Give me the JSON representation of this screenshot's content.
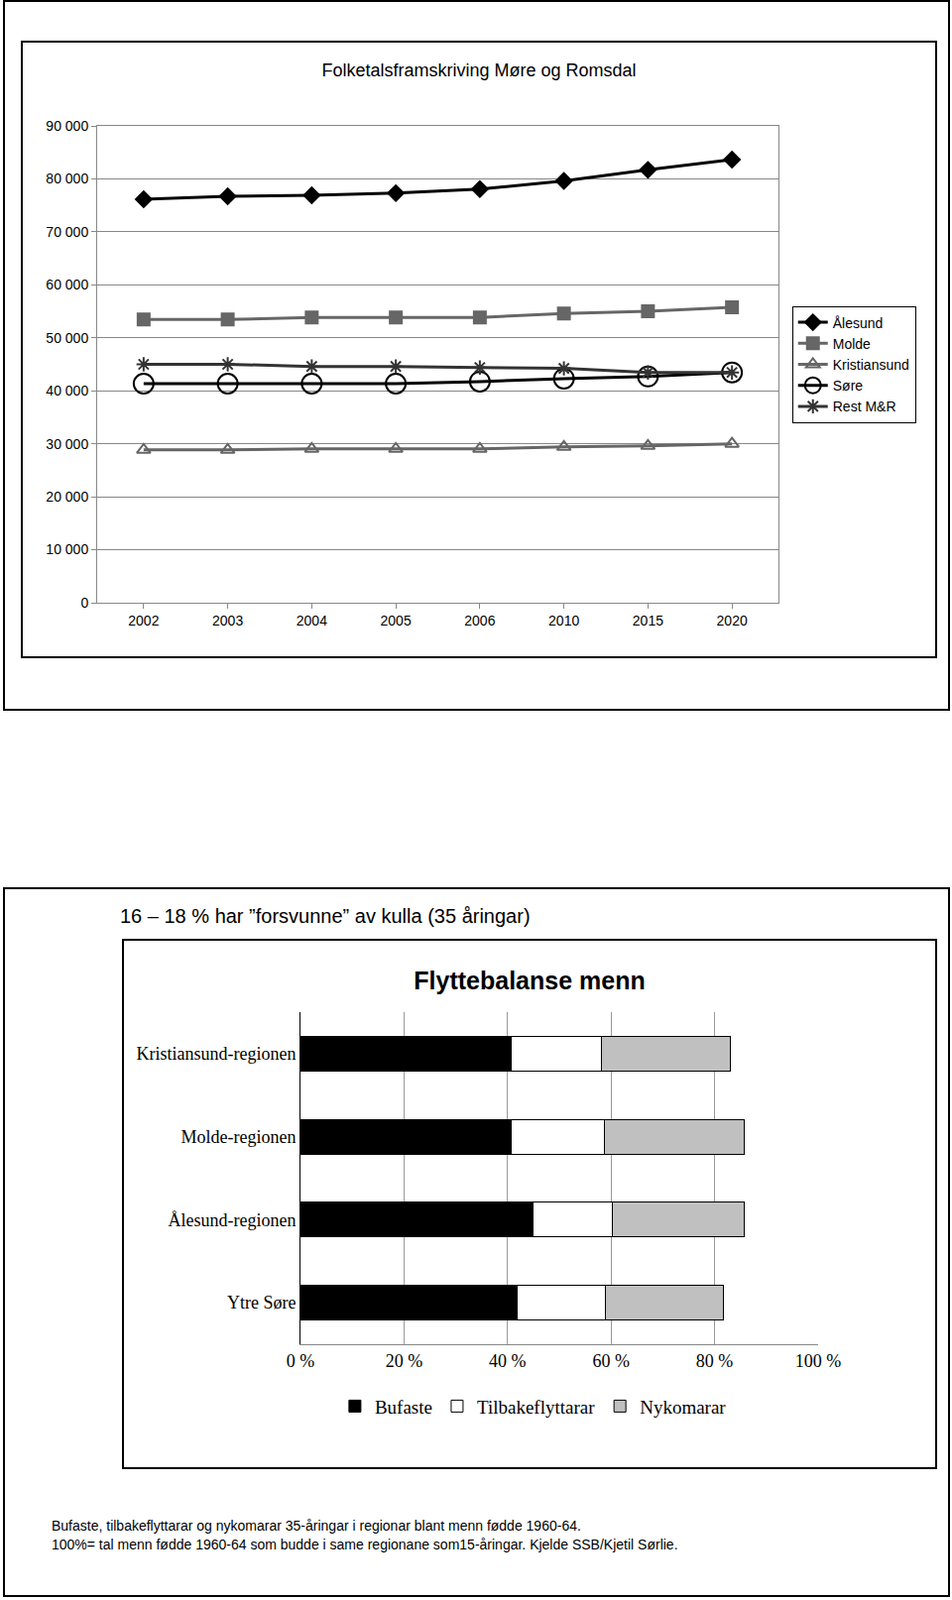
{
  "chart_data": [
    {
      "type": "line",
      "title": "Folketalsframskriving Møre og Romsdal",
      "categories": [
        "2002",
        "2003",
        "2004",
        "2005",
        "2006",
        "2010",
        "2015",
        "2020"
      ],
      "series": [
        {
          "name": "Ålesund",
          "color": "#000000",
          "marker": "diamond",
          "values": [
            76150,
            76730,
            76900,
            77300,
            78080,
            79600,
            81700,
            83650
          ]
        },
        {
          "name": "Molde",
          "color": "#666666",
          "marker": "square",
          "values": [
            53460,
            53460,
            53850,
            53850,
            53850,
            54600,
            55000,
            55770
          ]
        },
        {
          "name": "Kristiansund",
          "color": "#666666",
          "marker": "triangle-up-open",
          "values": [
            28850,
            28850,
            29040,
            29040,
            29040,
            29420,
            29600,
            30000
          ]
        },
        {
          "name": "Søre",
          "color": "#000000",
          "marker": "circle-open",
          "values": [
            41350,
            41350,
            41350,
            41350,
            41730,
            42300,
            42700,
            43460
          ]
        },
        {
          "name": "Rest M&R",
          "color": "#333333",
          "marker": "asterisk-open",
          "values": [
            45000,
            45000,
            44600,
            44600,
            44400,
            44230,
            43460,
            43460
          ]
        }
      ],
      "ylim": [
        0,
        90000
      ],
      "yticks": [
        0,
        {
          "value": 10000,
          "label": "10 000"
        },
        {
          "value": 20000,
          "label": "20 000"
        },
        {
          "value": 30000,
          "label": "30 000"
        },
        {
          "value": 40000,
          "label": "40 000"
        },
        {
          "value": 50000,
          "label": "50 000"
        },
        {
          "value": 60000,
          "label": "60 000"
        },
        {
          "value": 70000,
          "label": "70 000"
        },
        {
          "value": 80000,
          "label": "80 000"
        },
        {
          "value": 90000,
          "label": "90 000"
        }
      ],
      "grid": true,
      "legend": "right"
    },
    {
      "type": "bar",
      "subtitle": "16 – 18 % har ”forsvunne” av kulla (35 åringar)",
      "title": "Flyttebalanse menn",
      "orientation": "horizontal",
      "stacked": true,
      "categories": [
        "Kristiansund-regionen",
        "Molde-regionen",
        "Ålesund-regionen",
        "Ytre Søre"
      ],
      "series": [
        {
          "name": "Bufaste",
          "color": "#000000",
          "values": [
            40.7,
            40.7,
            45.0,
            41.8
          ]
        },
        {
          "name": "Tilbakeflyttarar",
          "color": "#ffffff",
          "values": [
            17.4,
            18.1,
            15.3,
            17.1
          ]
        },
        {
          "name": "Nykomarar",
          "color": "#c0c0c0",
          "values": [
            24.9,
            26.9,
            25.4,
            22.8
          ]
        }
      ],
      "xlim": [
        0,
        100
      ],
      "xticks": [
        {
          "value": 0,
          "label": "0 %"
        },
        {
          "value": 20,
          "label": "20 %"
        },
        {
          "value": 40,
          "label": "40 %"
        },
        {
          "value": 60,
          "label": "60 %"
        },
        {
          "value": 80,
          "label": "80 %"
        },
        {
          "value": 100,
          "label": "100 %"
        }
      ],
      "grid": true,
      "legend": "bottom",
      "annotations": [
        "Bufaste, tilbakeflyttarar og nykomarar 35-åringar i regionar blant menn fødde 1960-64.",
        "100%= tal menn fødde 1960-64 som budde i same regionane som15-åringar. Kjelde SSB/Kjetil Sørlie."
      ]
    }
  ]
}
